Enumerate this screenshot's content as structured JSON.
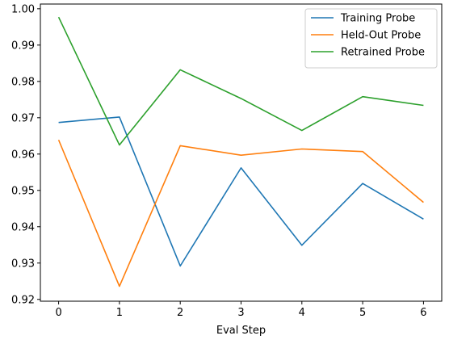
{
  "chart_data": {
    "type": "line",
    "title": "",
    "xlabel": "Eval Step",
    "ylabel": "",
    "x": [
      0,
      1,
      2,
      3,
      4,
      5,
      6
    ],
    "xlim": [
      -0.3,
      6.3
    ],
    "ylim": [
      0.9195,
      1.0013
    ],
    "xticks": [
      "0",
      "1",
      "2",
      "3",
      "4",
      "5",
      "6"
    ],
    "yticks": [
      0.92,
      0.93,
      0.94,
      0.95,
      0.96,
      0.97,
      0.98,
      0.99,
      1.0
    ],
    "ytick_labels": [
      "0.92",
      "0.93",
      "0.94",
      "0.95",
      "0.96",
      "0.97",
      "0.98",
      "0.99",
      "1.00"
    ],
    "grid": false,
    "legend_position": "top-right",
    "series": [
      {
        "name": "Training Probe",
        "color": "#1f77b4",
        "values": [
          0.9687,
          0.9702,
          0.9292,
          0.9562,
          0.9349,
          0.9519,
          0.9421
        ]
      },
      {
        "name": "Held-Out Probe",
        "color": "#ff7f0e",
        "values": [
          0.9639,
          0.9236,
          0.9623,
          0.9597,
          0.9614,
          0.9607,
          0.9467
        ]
      },
      {
        "name": "Retrained Probe",
        "color": "#2ca02c",
        "values": [
          0.9977,
          0.9625,
          0.9832,
          0.9753,
          0.9665,
          0.9758,
          0.9734
        ]
      }
    ]
  }
}
